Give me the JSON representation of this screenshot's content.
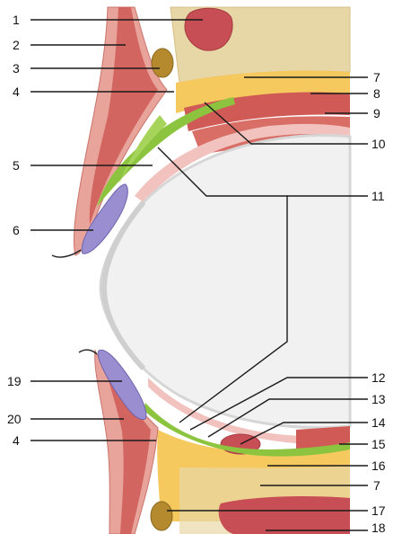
{
  "labels": {
    "l1": "1",
    "l2": "2",
    "l3": "3",
    "l4_top": "4",
    "l5": "5",
    "l6": "6",
    "l7_top": "7",
    "l8": "8",
    "l9": "9",
    "l10": "10",
    "l11": "11",
    "l12": "12",
    "l13": "13",
    "l14": "14",
    "l15": "15",
    "l16": "16",
    "l7_bottom": "7",
    "l17": "17",
    "l18": "18",
    "l19": "19",
    "l20": "20",
    "l4_bottom": "4"
  },
  "colors": {
    "skin": "#e8a49a",
    "muscle": "#cf5a56",
    "fat": "#f6c95e",
    "bone": "#e8d7a6",
    "green_muscle": "#8cc43f",
    "gland": "#9a8ed1",
    "globe": "#f1f1f1",
    "fornix": "#f2c2be"
  }
}
